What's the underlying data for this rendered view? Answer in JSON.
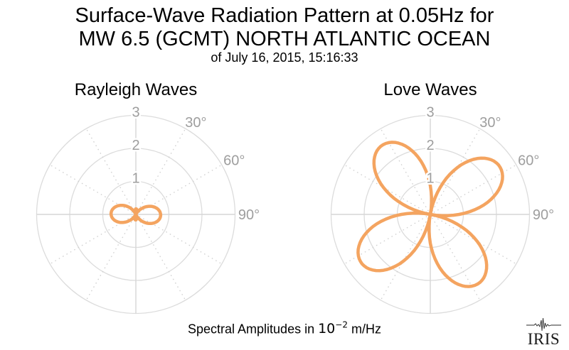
{
  "header": {
    "title_line1": "Surface-Wave Radiation Pattern at 0.05Hz for",
    "title_line2": "MW 6.5 (GCMT) NORTH ATLANTIC OCEAN",
    "subtitle": "of July 16, 2015, 15:16:33"
  },
  "caption": {
    "prefix": "Spectral Amplitudes in",
    "power_base": "10",
    "power_exponent": "−2",
    "suffix": "m/Hz"
  },
  "footer": {
    "logo_text": "IRIS"
  },
  "colors": {
    "curve": "#F4A460",
    "grid_circle": "#DCDCDC",
    "grid_axis": "#D6D6D6",
    "grid_dotted": "#D0D0D0",
    "axis_label": "#9E9E9E",
    "title_text": "#000000",
    "logo_text": "#1A1A1A"
  },
  "chart_data": [
    {
      "type": "line",
      "plot_style": "polar",
      "title": "Rayleigh Waves",
      "amplitude_units": "10^-2 m/Hz",
      "angle_convention": "azimuth in degrees, 0 at top, clockwise",
      "r_ticks": [
        1,
        2,
        3
      ],
      "r_max": 3,
      "angle_labels": [
        {
          "text": "30°",
          "deg": 30
        },
        {
          "text": "60°",
          "deg": 60
        },
        {
          "text": "90°",
          "deg": 90
        }
      ],
      "grid": {
        "solid_circles": [
          1,
          2,
          3
        ],
        "solid_spokes_deg": [
          0,
          90,
          180,
          270
        ],
        "dotted_spokes_deg": [
          30,
          60,
          120,
          150,
          210,
          240,
          300,
          330
        ]
      },
      "series": [
        {
          "name": "rayleigh-spectral-amplitude",
          "model": {
            "formula": "signed polar: r(az) = c0 + c1*cos(2*(az - phi0)); negative r plotted at opposite azimuth",
            "c0": 0.29,
            "c1": 0.46,
            "phi0_deg": 92
          },
          "peak_amplitude": 0.75,
          "peak_azimuths_deg": [
            92,
            272
          ],
          "minor_loop_amplitude": 0.17,
          "minor_loop_azimuths_deg": [
            2,
            182
          ],
          "samples_azimuth_deg": [
            0,
            15,
            30,
            45,
            60,
            75,
            90,
            105,
            120,
            135,
            150,
            165,
            180,
            195,
            210,
            225,
            240,
            255,
            270,
            285,
            300,
            315,
            330,
            345,
            360
          ],
          "samples_amplitude": [
            -0.17,
            -0.12,
            0.03,
            0.26,
            0.49,
            0.67,
            0.75,
            0.7,
            0.55,
            0.32,
            0.09,
            -0.09,
            -0.17,
            -0.12,
            0.03,
            0.26,
            0.49,
            0.67,
            0.75,
            0.7,
            0.55,
            0.32,
            0.09,
            -0.09,
            -0.17
          ]
        }
      ]
    },
    {
      "type": "line",
      "plot_style": "polar",
      "title": "Love Waves",
      "amplitude_units": "10^-2 m/Hz",
      "angle_convention": "azimuth in degrees, 0 at top, clockwise",
      "r_ticks": [
        1,
        2,
        3
      ],
      "r_max": 3,
      "angle_labels": [
        {
          "text": "30°",
          "deg": 30
        },
        {
          "text": "60°",
          "deg": 60
        },
        {
          "text": "90°",
          "deg": 90
        }
      ],
      "grid": {
        "solid_circles": [
          1,
          2,
          3
        ],
        "solid_spokes_deg": [
          0,
          90,
          180,
          270
        ],
        "dotted_spokes_deg": [
          30,
          60,
          120,
          150,
          210,
          240,
          300,
          330
        ]
      },
      "series": [
        {
          "name": "love-spectral-amplitude",
          "model": {
            "formula": "r(az) = A*abs(sin(2*(az - phi0)))",
            "A": 2.55,
            "phi0_deg": 10
          },
          "peak_amplitude": 2.55,
          "peak_azimuths_deg": [
            55,
            145,
            235,
            325
          ],
          "null_azimuths_deg": [
            10,
            100,
            190,
            280
          ],
          "samples_azimuth_deg": [
            0,
            15,
            30,
            45,
            60,
            75,
            90,
            105,
            120,
            135,
            150,
            165,
            180,
            195,
            210,
            225,
            240,
            255,
            270,
            285,
            300,
            315,
            330,
            345,
            360
          ],
          "samples_amplitude": [
            0.87,
            0.44,
            1.64,
            2.4,
            2.51,
            1.95,
            0.87,
            0.44,
            1.64,
            2.4,
            2.51,
            1.95,
            0.87,
            0.44,
            1.64,
            2.4,
            2.51,
            1.95,
            0.87,
            0.44,
            1.64,
            2.4,
            2.51,
            1.95,
            0.87
          ]
        }
      ]
    }
  ]
}
